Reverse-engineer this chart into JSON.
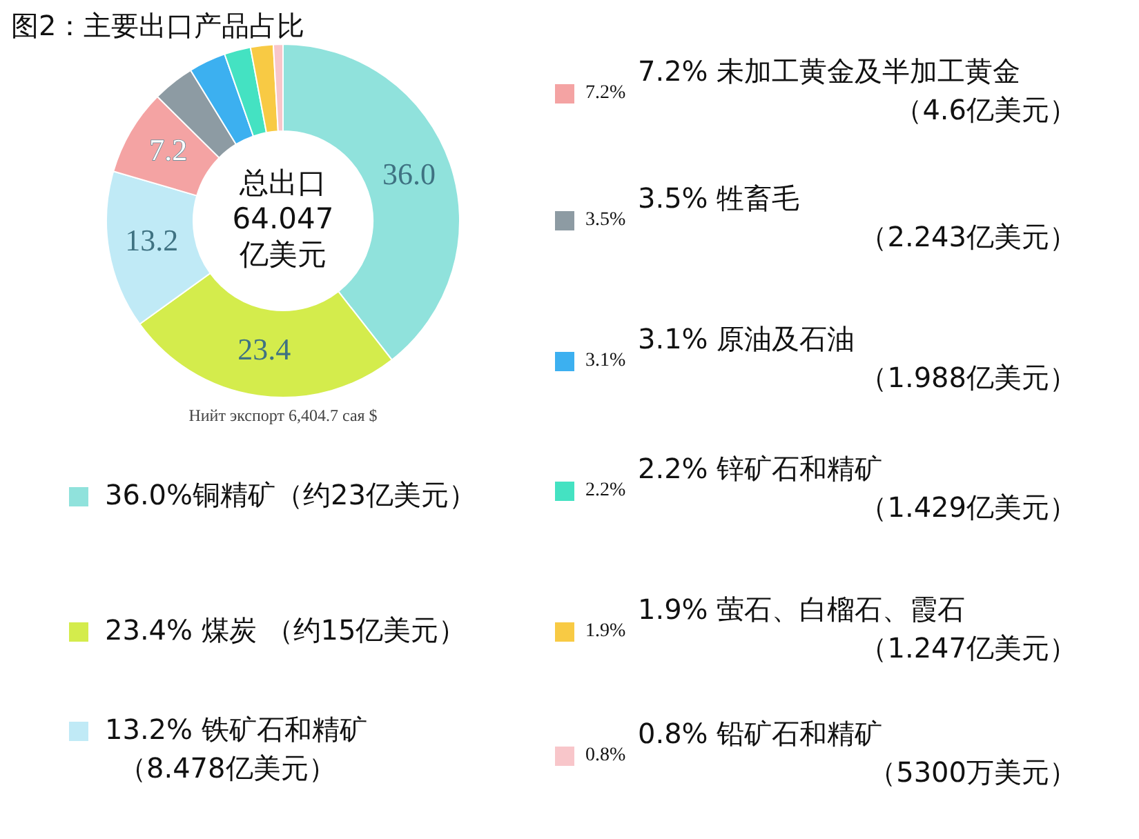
{
  "chart_data": {
    "type": "donut",
    "title": "图2：主要出口产品占比",
    "categories": [
      "36.0%铜精矿（约23亿美元）",
      "23.4% 煤炭 （约15亿美元）",
      "13.2% 铁矿石和精矿（8.478亿美元）",
      "7.2% 未加工黄金及半加工黄金（4.6亿美元）",
      "3.5% 牲畜毛（2.243亿美元）",
      "3.1% 原油及石油（1.988亿美元）",
      "2.2% 锌矿石和精矿（1.429亿美元）",
      "1.9% 萤石、白榴石、霞石（1.247亿美元）",
      "0.8% 铅矿石和精矿（5300万美元）"
    ],
    "values": [
      36.0,
      23.4,
      13.2,
      7.2,
      3.5,
      3.1,
      2.2,
      1.9,
      0.8
    ],
    "colors": [
      "#90e2dc",
      "#d4ec4c",
      "#c0eaf6",
      "#f4a3a3",
      "#8d9ba3",
      "#3cb0f0",
      "#44e2c2",
      "#f8ca44",
      "#f8c6ca"
    ],
    "value_labels": [
      "36.0",
      "23.4",
      "13.2",
      "7.2",
      null,
      null,
      null,
      null,
      null
    ],
    "annotations": [
      "总出口\n64.047\n亿美元",
      "Нийт экспорт 6,404.7 сая $",
      "7.2%",
      "3.5%",
      "3.1%",
      "2.2%",
      "1.9%",
      "0.8%"
    ],
    "legend": "bottom right"
  }
}
